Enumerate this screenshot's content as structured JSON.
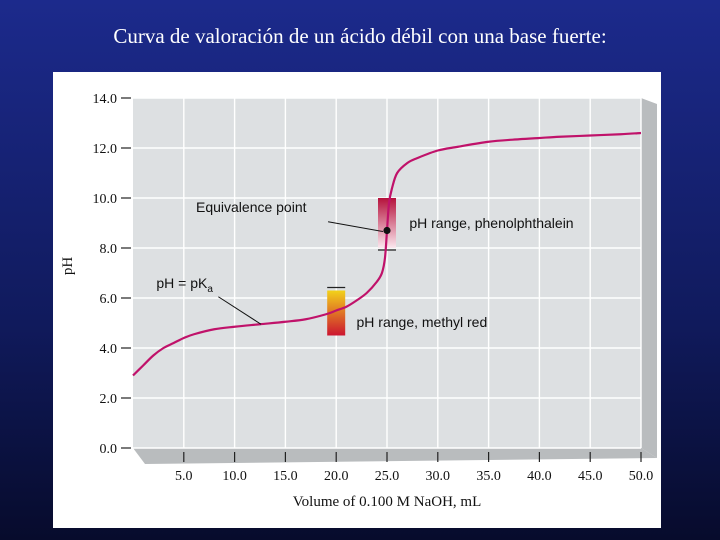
{
  "slide": {
    "title": "Curva de valoración de un ácido débil con una base fuerte:"
  },
  "colors": {
    "background_top": "#1c2a8c",
    "background_bottom": "#070b2c",
    "plot_area": "#dde0e2",
    "plot_shadow": "#b9bcbe",
    "curve": "#c0126a",
    "text": "#111111"
  },
  "chart_data": {
    "type": "line",
    "xlabel": "Volume of 0.100 M NaOH, mL",
    "ylabel": "pH",
    "xlim": [
      0,
      50
    ],
    "ylim": [
      0,
      14
    ],
    "x_ticks": [
      5,
      10,
      15,
      20,
      25,
      30,
      35,
      40,
      45,
      50
    ],
    "x_tick_labels": [
      "5.0",
      "10.0",
      "15.0",
      "20.0",
      "25.0",
      "30.0",
      "35.0",
      "40.0",
      "45.0",
      "50.0"
    ],
    "y_ticks": [
      0,
      2,
      4,
      6,
      8,
      10,
      12,
      14
    ],
    "y_tick_labels": [
      "0.0",
      "2.0",
      "4.0",
      "6.0",
      "8.0",
      "10.0",
      "12.0",
      "14.0"
    ],
    "grid": true,
    "series": [
      {
        "x": [
          0,
          1,
          2,
          3,
          4,
          5,
          6,
          8,
          10,
          12.5,
          15,
          17,
          19,
          20,
          21,
          22,
          23,
          24,
          24.5,
          24.8,
          25,
          25.2,
          25.5,
          26,
          27,
          28,
          30,
          32,
          35,
          38,
          40,
          42,
          45,
          48,
          50
        ],
        "y": [
          2.9,
          3.3,
          3.7,
          4.0,
          4.2,
          4.4,
          4.55,
          4.75,
          4.85,
          4.95,
          5.05,
          5.15,
          5.35,
          5.5,
          5.65,
          5.9,
          6.2,
          6.65,
          7.0,
          7.6,
          8.7,
          9.8,
          10.4,
          11.0,
          11.4,
          11.6,
          11.9,
          12.05,
          12.25,
          12.35,
          12.4,
          12.45,
          12.5,
          12.55,
          12.6
        ]
      }
    ],
    "equivalence_point": {
      "x": 25,
      "y": 8.7
    },
    "indicator_ranges": [
      {
        "name": "phenolphthalein",
        "x": 25,
        "ymin": 8.0,
        "ymax": 10.0,
        "color_low": "#fbe8ef",
        "color_high": "#b5123c"
      },
      {
        "name": "methyl red",
        "x": 20,
        "ymin": 4.5,
        "ymax": 6.3,
        "color_low": "#cc1530",
        "color_high": "#f2d21a"
      }
    ],
    "annotations": {
      "equivalence": "Equivalence point",
      "phenolphthalein": "pH range, phenolphthalein",
      "pka": "pH = pK",
      "pka_sub": "a",
      "methyl_red": "pH range, methyl red"
    }
  }
}
